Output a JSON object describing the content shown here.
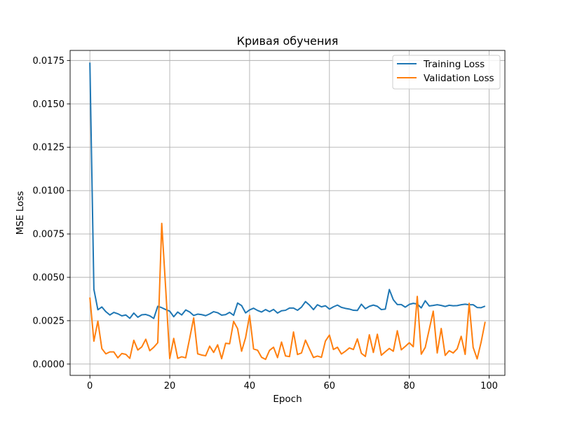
{
  "chart_data": {
    "type": "line",
    "title": "Кривая обучения",
    "xlabel": "Epoch",
    "ylabel": "MSE Loss",
    "xlim": [
      -4.95,
      103.95
    ],
    "ylim": [
      -0.000652,
      0.01808
    ],
    "xticks": [
      0,
      20,
      40,
      60,
      80,
      100
    ],
    "yticks": [
      0.0,
      0.0025,
      0.005,
      0.0075,
      0.01,
      0.0125,
      0.015,
      0.0175
    ],
    "ytick_labels": [
      "0.0000",
      "0.0025",
      "0.0050",
      "0.0075",
      "0.0100",
      "0.0125",
      "0.0150",
      "0.0175"
    ],
    "grid": true,
    "legend_position": "top-right",
    "series": [
      {
        "name": "Training Loss",
        "color": "#1f77b4",
        "values": [
          0.01738,
          0.00431,
          0.00313,
          0.00329,
          0.00302,
          0.00283,
          0.00298,
          0.0029,
          0.00278,
          0.00283,
          0.00264,
          0.00294,
          0.0027,
          0.00284,
          0.00286,
          0.00278,
          0.00263,
          0.00333,
          0.00325,
          0.00314,
          0.00305,
          0.00273,
          0.003,
          0.00283,
          0.00312,
          0.003,
          0.0028,
          0.00288,
          0.00285,
          0.00279,
          0.00289,
          0.00302,
          0.00296,
          0.00282,
          0.00285,
          0.00298,
          0.00281,
          0.00352,
          0.00337,
          0.00295,
          0.00312,
          0.00322,
          0.00309,
          0.003,
          0.00314,
          0.00302,
          0.00315,
          0.00294,
          0.00307,
          0.0031,
          0.00323,
          0.00323,
          0.0031,
          0.00328,
          0.0036,
          0.0034,
          0.00314,
          0.00342,
          0.0033,
          0.00336,
          0.00317,
          0.0033,
          0.0034,
          0.00327,
          0.00321,
          0.00317,
          0.0031,
          0.00309,
          0.00345,
          0.00319,
          0.00333,
          0.0034,
          0.00333,
          0.00314,
          0.00317,
          0.0043,
          0.00371,
          0.00343,
          0.00343,
          0.00328,
          0.00344,
          0.0035,
          0.00346,
          0.00324,
          0.00365,
          0.00335,
          0.00338,
          0.00342,
          0.00338,
          0.00332,
          0.00339,
          0.00336,
          0.00337,
          0.00342,
          0.00345,
          0.00342,
          0.00342,
          0.00326,
          0.00325,
          0.00334
        ]
      },
      {
        "name": "Validation Loss",
        "color": "#ff7f0e",
        "values": [
          0.00384,
          0.00132,
          0.00248,
          0.00089,
          0.00059,
          0.0007,
          0.0007,
          0.00036,
          0.00061,
          0.00056,
          0.00033,
          0.00137,
          0.00081,
          0.00099,
          0.00143,
          0.00077,
          0.00097,
          0.00123,
          0.00811,
          0.0043,
          0.00032,
          0.00148,
          0.00033,
          0.00042,
          0.00036,
          0.00149,
          0.00266,
          0.00059,
          0.00052,
          0.00048,
          0.00103,
          0.00067,
          0.00111,
          0.00031,
          0.0012,
          0.00117,
          0.00246,
          0.00204,
          0.00074,
          0.00152,
          0.00281,
          0.00087,
          0.0008,
          0.00039,
          0.00027,
          0.00079,
          0.00097,
          0.00037,
          0.00127,
          0.00047,
          0.00043,
          0.00185,
          0.00055,
          0.00064,
          0.00138,
          0.00087,
          0.00038,
          0.00046,
          0.00039,
          0.00133,
          0.00167,
          0.00084,
          0.00097,
          0.00058,
          0.00074,
          0.00093,
          0.00084,
          0.00145,
          0.00062,
          0.00044,
          0.00169,
          0.00067,
          0.00172,
          0.00051,
          0.00071,
          0.0009,
          0.00074,
          0.00192,
          0.00082,
          0.00102,
          0.00123,
          0.001,
          0.0039,
          0.00057,
          0.00096,
          0.002,
          0.00305,
          0.00064,
          0.00205,
          0.0005,
          0.00077,
          0.00064,
          0.00088,
          0.0016,
          0.00056,
          0.0035,
          0.00096,
          0.0003,
          0.00127,
          0.00244
        ]
      }
    ]
  }
}
